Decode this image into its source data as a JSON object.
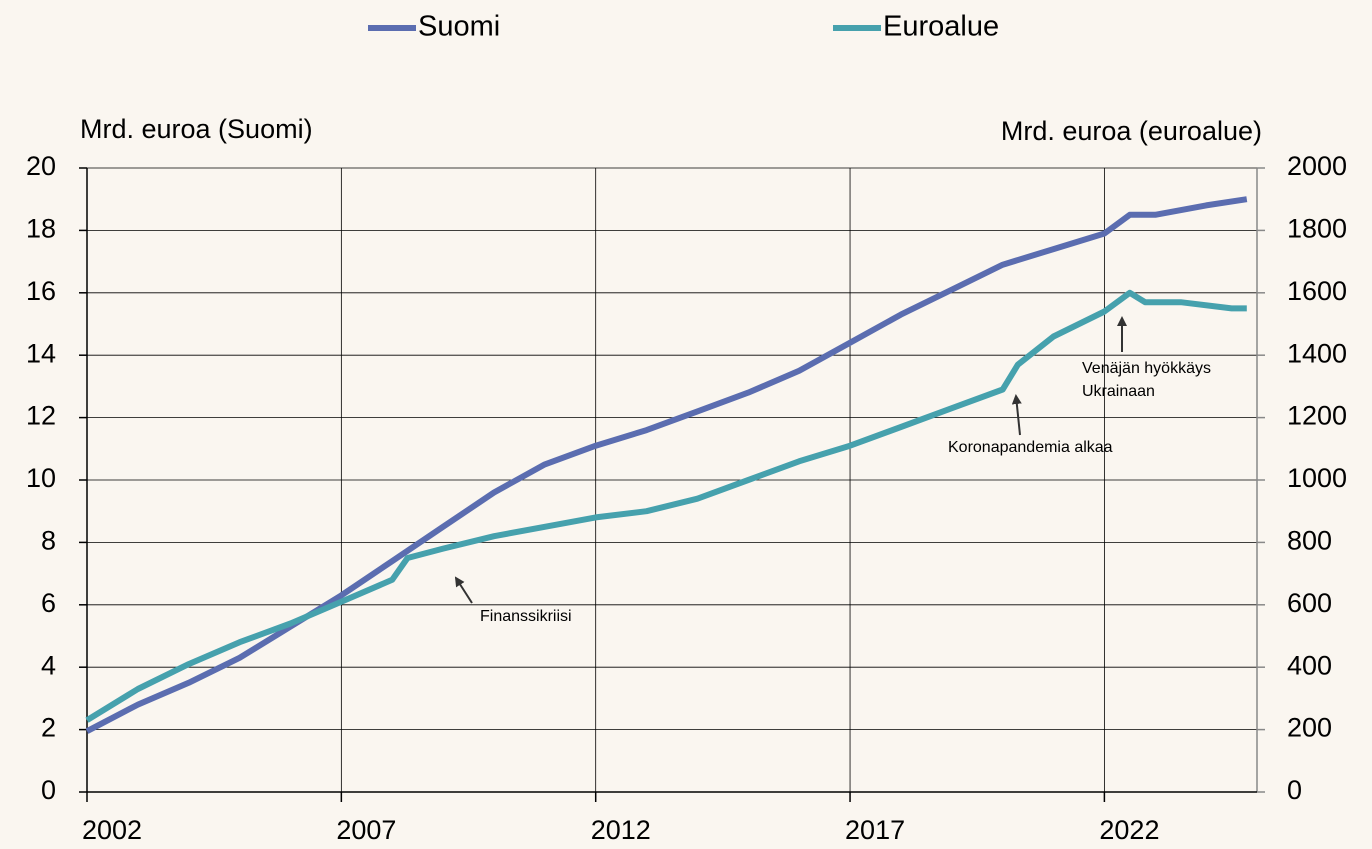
{
  "chart_data": {
    "type": "line",
    "y_label": "Mrd. euroa (Suomi)",
    "y2_label": "Mrd. euroa (euroalue)",
    "xlim": [
      2002,
      2025
    ],
    "xticks": [
      2002,
      2007,
      2012,
      2017,
      2022
    ],
    "ylim": [
      0,
      20
    ],
    "yticks": [
      0,
      2,
      4,
      6,
      8,
      10,
      12,
      14,
      16,
      18,
      20
    ],
    "y2lim": [
      0,
      2000
    ],
    "y2ticks": [
      0,
      200,
      400,
      600,
      800,
      1000,
      1200,
      1400,
      1600,
      1800,
      2000
    ],
    "grid": true,
    "legend": "top",
    "series": [
      {
        "name": "Suomi",
        "color": "#5b6db0",
        "x": [
          2002,
          2003,
          2004,
          2005,
          2006,
          2007,
          2008,
          2009,
          2010,
          2011,
          2012,
          2013,
          2014,
          2015,
          2016,
          2017,
          2018,
          2019,
          2020,
          2021,
          2022,
          2022.5,
          2023,
          2024,
          2024.8
        ],
        "values": [
          1.95,
          2.8,
          3.5,
          4.3,
          5.3,
          6.3,
          7.4,
          8.5,
          9.6,
          10.5,
          11.1,
          11.6,
          12.2,
          12.8,
          13.5,
          14.4,
          15.3,
          16.1,
          16.9,
          17.4,
          17.9,
          18.5,
          18.5,
          18.8,
          19.0
        ]
      },
      {
        "name": "Euroalue",
        "color": "#46a1ad",
        "axis": "y2",
        "x": [
          2002,
          2003,
          2004,
          2005,
          2006,
          2007,
          2008,
          2008.3,
          2009,
          2010,
          2011,
          2012,
          2013,
          2014,
          2015,
          2016,
          2017,
          2018,
          2019,
          2020,
          2020.3,
          2021,
          2022,
          2022.5,
          2022.8,
          2023.5,
          2024.5,
          2024.8
        ],
        "values": [
          230,
          330,
          410,
          480,
          540,
          610,
          680,
          750,
          780,
          820,
          850,
          880,
          900,
          940,
          1000,
          1060,
          1110,
          1170,
          1230,
          1290,
          1370,
          1460,
          1540,
          1600,
          1570,
          1570,
          1550,
          1550
        ]
      }
    ],
    "annotations": [
      "Finanssikriisi",
      "Koronapandemia alkaa",
      "Venäjän hyökkäys",
      "Ukrainaan"
    ]
  }
}
